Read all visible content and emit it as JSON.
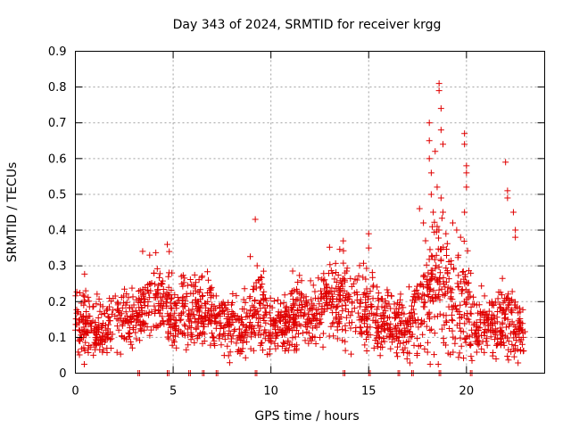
{
  "chart_data": {
    "type": "scatter",
    "title": "Day 343 of 2024, SRMTID for receiver krgg",
    "xlabel": "GPS time / hours",
    "ylabel": "SRMTID / TECUs",
    "xlim": [
      0,
      24
    ],
    "ylim": [
      0,
      0.9
    ],
    "xticks": [
      0,
      5,
      10,
      15,
      20
    ],
    "xtick_labels": [
      "0",
      "5",
      "10",
      "15",
      "20"
    ],
    "yticks": [
      0,
      0.1,
      0.2,
      0.3,
      0.4,
      0.5,
      0.6,
      0.7,
      0.8,
      0.9
    ],
    "ytick_labels": [
      "0",
      "0.1",
      "0.2",
      "0.3",
      "0.4",
      "0.5",
      "0.6",
      "0.7",
      "0.8",
      "0.9"
    ],
    "grid": true,
    "marker": "+",
    "color": "#e00000",
    "zero_hours": [
      3.2,
      4.7,
      5.8,
      6.5,
      7.2,
      9.2,
      13.7,
      15.0,
      16.5,
      17.2,
      18.6,
      20.2
    ],
    "envelope": [
      [
        0,
        0.15,
        0.05
      ],
      [
        0.5,
        0.14,
        0.05
      ],
      [
        1.0,
        0.11,
        0.04
      ],
      [
        1.5,
        0.12,
        0.04
      ],
      [
        2.0,
        0.14,
        0.05
      ],
      [
        2.5,
        0.16,
        0.05
      ],
      [
        3.0,
        0.14,
        0.05
      ],
      [
        3.5,
        0.19,
        0.06
      ],
      [
        4.0,
        0.2,
        0.06
      ],
      [
        4.5,
        0.21,
        0.06
      ],
      [
        5.0,
        0.14,
        0.05
      ],
      [
        5.5,
        0.17,
        0.05
      ],
      [
        6.0,
        0.16,
        0.05
      ],
      [
        6.5,
        0.18,
        0.05
      ],
      [
        7.0,
        0.17,
        0.05
      ],
      [
        7.5,
        0.14,
        0.04
      ],
      [
        8.0,
        0.13,
        0.04
      ],
      [
        8.5,
        0.12,
        0.04
      ],
      [
        9.0,
        0.18,
        0.06
      ],
      [
        9.5,
        0.18,
        0.06
      ],
      [
        10.0,
        0.13,
        0.04
      ],
      [
        10.5,
        0.14,
        0.04
      ],
      [
        11.0,
        0.15,
        0.05
      ],
      [
        11.5,
        0.16,
        0.05
      ],
      [
        12.0,
        0.16,
        0.05
      ],
      [
        12.5,
        0.17,
        0.05
      ],
      [
        13.0,
        0.2,
        0.06
      ],
      [
        13.5,
        0.21,
        0.06
      ],
      [
        14.0,
        0.2,
        0.06
      ],
      [
        14.5,
        0.19,
        0.06
      ],
      [
        15.0,
        0.17,
        0.06
      ],
      [
        15.5,
        0.15,
        0.05
      ],
      [
        16.0,
        0.16,
        0.05
      ],
      [
        16.5,
        0.14,
        0.05
      ],
      [
        17.0,
        0.1,
        0.04
      ],
      [
        17.5,
        0.18,
        0.07
      ],
      [
        18.0,
        0.22,
        0.09
      ],
      [
        18.5,
        0.25,
        0.12
      ],
      [
        19.0,
        0.22,
        0.1
      ],
      [
        19.5,
        0.18,
        0.08
      ],
      [
        20.0,
        0.22,
        0.1
      ],
      [
        20.5,
        0.12,
        0.04
      ],
      [
        21.0,
        0.13,
        0.05
      ],
      [
        21.5,
        0.14,
        0.05
      ],
      [
        22.0,
        0.15,
        0.06
      ],
      [
        22.5,
        0.13,
        0.05
      ],
      [
        23.0,
        0.1,
        0.03
      ]
    ],
    "spikes": [
      [
        4.7,
        0.36
      ],
      [
        4.8,
        0.34
      ],
      [
        3.8,
        0.33
      ],
      [
        9.2,
        0.43
      ],
      [
        13.7,
        0.37
      ],
      [
        15.0,
        0.39
      ],
      [
        15.0,
        0.35
      ],
      [
        17.6,
        0.46
      ],
      [
        17.8,
        0.42
      ],
      [
        18.1,
        0.7
      ],
      [
        18.1,
        0.65
      ],
      [
        18.1,
        0.6
      ],
      [
        18.2,
        0.56
      ],
      [
        18.2,
        0.5
      ],
      [
        18.3,
        0.45
      ],
      [
        18.4,
        0.62
      ],
      [
        18.5,
        0.41
      ],
      [
        18.6,
        0.81
      ],
      [
        18.6,
        0.79
      ],
      [
        18.7,
        0.74
      ],
      [
        18.7,
        0.68
      ],
      [
        18.8,
        0.64
      ],
      [
        18.7,
        0.49
      ],
      [
        18.8,
        0.45
      ],
      [
        18.5,
        0.52
      ],
      [
        19.3,
        0.42
      ],
      [
        19.5,
        0.4
      ],
      [
        19.7,
        0.38
      ],
      [
        19.9,
        0.67
      ],
      [
        19.9,
        0.64
      ],
      [
        20.0,
        0.58
      ],
      [
        20.0,
        0.56
      ],
      [
        20.0,
        0.52
      ],
      [
        19.9,
        0.45
      ],
      [
        22.0,
        0.59
      ],
      [
        22.1,
        0.51
      ],
      [
        22.1,
        0.49
      ],
      [
        22.4,
        0.45
      ],
      [
        22.5,
        0.4
      ],
      [
        22.5,
        0.38
      ]
    ]
  }
}
